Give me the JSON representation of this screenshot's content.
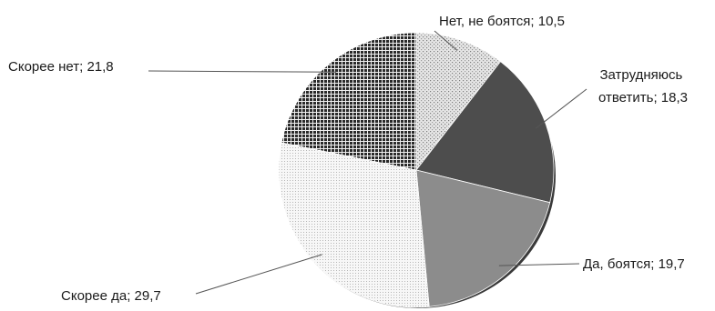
{
  "chart_data": {
    "type": "pie",
    "title": "",
    "label_separator": "; ",
    "slices": [
      {
        "label": "Нет, не боятся",
        "value_text": "10,5",
        "value": 10.5,
        "pattern": "dots-light"
      },
      {
        "label": "Затрудняюсь ответить",
        "label_lines": [
          "Затрудняюсь",
          "ответить; 18,3"
        ],
        "value_text": "18,3",
        "value": 18.3,
        "pattern": "solid-dark"
      },
      {
        "label": "Да, боятся",
        "value_text": "19,7",
        "value": 19.7,
        "pattern": "solid-mid"
      },
      {
        "label": "Скорее да",
        "value_text": "29,7",
        "value": 29.7,
        "pattern": "dots-fine"
      },
      {
        "label": "Скорее нет",
        "value_text": "21,8",
        "value": 21.8,
        "pattern": "grid-dark"
      }
    ],
    "start_angle_deg": -90,
    "direction": "clockwise",
    "legend": "none",
    "colors": {
      "dots-light": "#d0d0d0",
      "solid-dark": "#4d4d4d",
      "solid-mid": "#8c8c8c",
      "dots-fine": "#f2f2f2",
      "grid-dark": "#2e2e2e"
    }
  }
}
